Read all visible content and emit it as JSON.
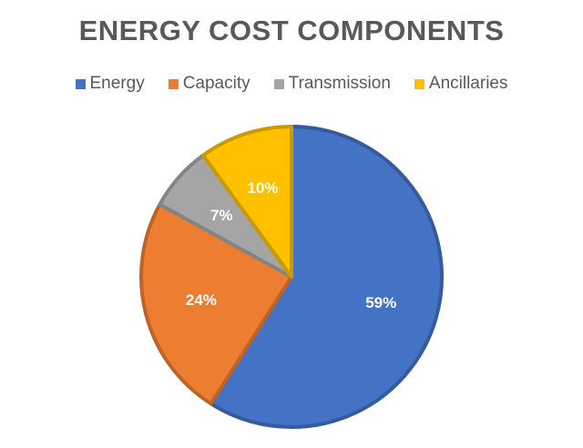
{
  "chart_data": {
    "type": "pie",
    "title": "ENERGY COST COMPONENTS",
    "legend_position": "top",
    "start_angle_deg": 0,
    "direction": "clockwise",
    "categories": [
      "Energy",
      "Capacity",
      "Transmission",
      "Ancillaries"
    ],
    "values": [
      59,
      24,
      7,
      10
    ],
    "value_labels": [
      "59%",
      "24%",
      "7%",
      "10%"
    ],
    "colors": [
      "#4472C4",
      "#ED7D31",
      "#A5A5A5",
      "#FFC000"
    ]
  }
}
